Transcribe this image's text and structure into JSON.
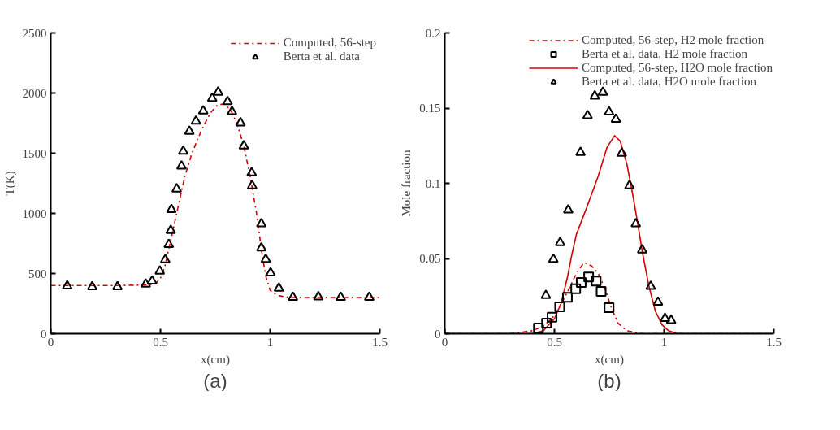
{
  "chart_data": [
    {
      "type": "line",
      "xlabel": "x(cm)",
      "ylabel": "T(K)",
      "xlim": [
        0,
        1.5
      ],
      "ylim": [
        0,
        2500
      ],
      "xticks": [
        0,
        0.5,
        1,
        1.5
      ],
      "yticks": [
        0,
        500,
        1000,
        1500,
        2000,
        2500
      ],
      "grid": false,
      "legend": "top right",
      "annotations": [
        "(a)"
      ],
      "series": [
        {
          "name": "Computed, 56-step",
          "type": "line",
          "line_style": "dashdot",
          "marker": "none",
          "color": "#d40000",
          "x": [
            0,
            0.3,
            0.45,
            0.48,
            0.5,
            0.52,
            0.55,
            0.58,
            0.61,
            0.64,
            0.67,
            0.7,
            0.73,
            0.76,
            0.79,
            0.82,
            0.85,
            0.88,
            0.91,
            0.94,
            0.96,
            0.98,
            1.0,
            1.03,
            1.07,
            1.1,
            1.5
          ],
          "values": [
            400,
            400,
            405,
            420,
            460,
            560,
            800,
            1050,
            1300,
            1480,
            1620,
            1740,
            1840,
            1900,
            1910,
            1860,
            1740,
            1560,
            1300,
            980,
            700,
            480,
            360,
            320,
            305,
            300,
            300
          ]
        },
        {
          "name": "Berta et al. data",
          "type": "scatter",
          "marker": "triangle",
          "color": "#000000",
          "x": [
            0.075,
            0.189,
            0.304,
            0.433,
            0.462,
            0.497,
            0.522,
            0.538,
            0.547,
            0.55,
            0.574,
            0.596,
            0.604,
            0.632,
            0.662,
            0.695,
            0.736,
            0.763,
            0.806,
            0.826,
            0.865,
            0.88,
            0.916,
            0.918,
            0.96,
            0.96,
            0.98,
            1.002,
            1.04,
            1.104,
            1.22,
            1.322,
            1.452
          ],
          "values": [
            396,
            390,
            390,
            412,
            437,
            520,
            615,
            741,
            858,
            1032,
            1203,
            1393,
            1516,
            1682,
            1766,
            1851,
            1955,
            2007,
            1928,
            1845,
            1752,
            1561,
            1338,
            1230,
            914,
            712,
            617,
            505,
            378,
            302,
            306,
            302,
            302
          ]
        }
      ]
    },
    {
      "type": "line",
      "xlabel": "x(cm)",
      "ylabel": "Mole fraction",
      "xlim": [
        0,
        1.5
      ],
      "ylim": [
        0,
        0.2
      ],
      "xticks": [
        0,
        0.5,
        1,
        1.5
      ],
      "yticks": [
        0,
        0.05,
        0.1,
        0.15,
        0.2
      ],
      "grid": false,
      "legend": "top",
      "annotations": [
        "(b)"
      ],
      "series": [
        {
          "name": "Computed, 56-step, H2 mole fraction",
          "type": "line",
          "line_style": "dashdot",
          "marker": "none",
          "color": "#d40000",
          "x": [
            0,
            0.3,
            0.4,
            0.45,
            0.5,
            0.55,
            0.6,
            0.635,
            0.67,
            0.7,
            0.73,
            0.76,
            0.79,
            0.83,
            0.9,
            1.5
          ],
          "values": [
            0,
            0,
            0.002,
            0.005,
            0.012,
            0.025,
            0.04,
            0.0474,
            0.045,
            0.04,
            0.03,
            0.017,
            0.007,
            0.002,
            0,
            0
          ]
        },
        {
          "name": "Berta et al. data, H2 mole fraction",
          "type": "scatter",
          "marker": "square",
          "color": "#000000",
          "x": [
            0.427,
            0.464,
            0.489,
            0.524,
            0.559,
            0.597,
            0.622,
            0.656,
            0.69,
            0.713,
            0.749
          ],
          "values": [
            0.0038,
            0.007,
            0.011,
            0.0178,
            0.0242,
            0.0299,
            0.034,
            0.0377,
            0.035,
            0.0281,
            0.0173
          ]
        },
        {
          "name": "Computed, 56-step, H2O mole fraction",
          "type": "line",
          "line_style": "solid",
          "marker": "none",
          "color": "#d40000",
          "x": [
            0,
            0.4,
            0.45,
            0.5,
            0.53,
            0.56,
            0.58,
            0.6,
            0.65,
            0.7,
            0.74,
            0.774,
            0.8,
            0.83,
            0.86,
            0.88,
            0.9,
            0.93,
            0.96,
            0.99,
            1.02,
            1.06,
            1.5
          ],
          "values": [
            0,
            0,
            0.002,
            0.01,
            0.02,
            0.038,
            0.053,
            0.066,
            0.085,
            0.105,
            0.124,
            0.1317,
            0.128,
            0.113,
            0.09,
            0.073,
            0.055,
            0.032,
            0.015,
            0.006,
            0.002,
            0,
            0
          ]
        },
        {
          "name": "Berta et al. data, H2O mole fraction",
          "type": "scatter",
          "marker": "triangle",
          "color": "#000000",
          "x": [
            0.461,
            0.495,
            0.526,
            0.563,
            0.619,
            0.651,
            0.684,
            0.721,
            0.749,
            0.78,
            0.807,
            0.842,
            0.871,
            0.9,
            0.939,
            0.972,
            1.004,
            1.032
          ],
          "values": [
            0.0254,
            0.0494,
            0.0605,
            0.0822,
            0.1205,
            0.1449,
            0.158,
            0.1605,
            0.1474,
            0.1425,
            0.12,
            0.0984,
            0.0731,
            0.0557,
            0.0314,
            0.0209,
            0.0101,
            0.0088
          ]
        }
      ]
    }
  ]
}
